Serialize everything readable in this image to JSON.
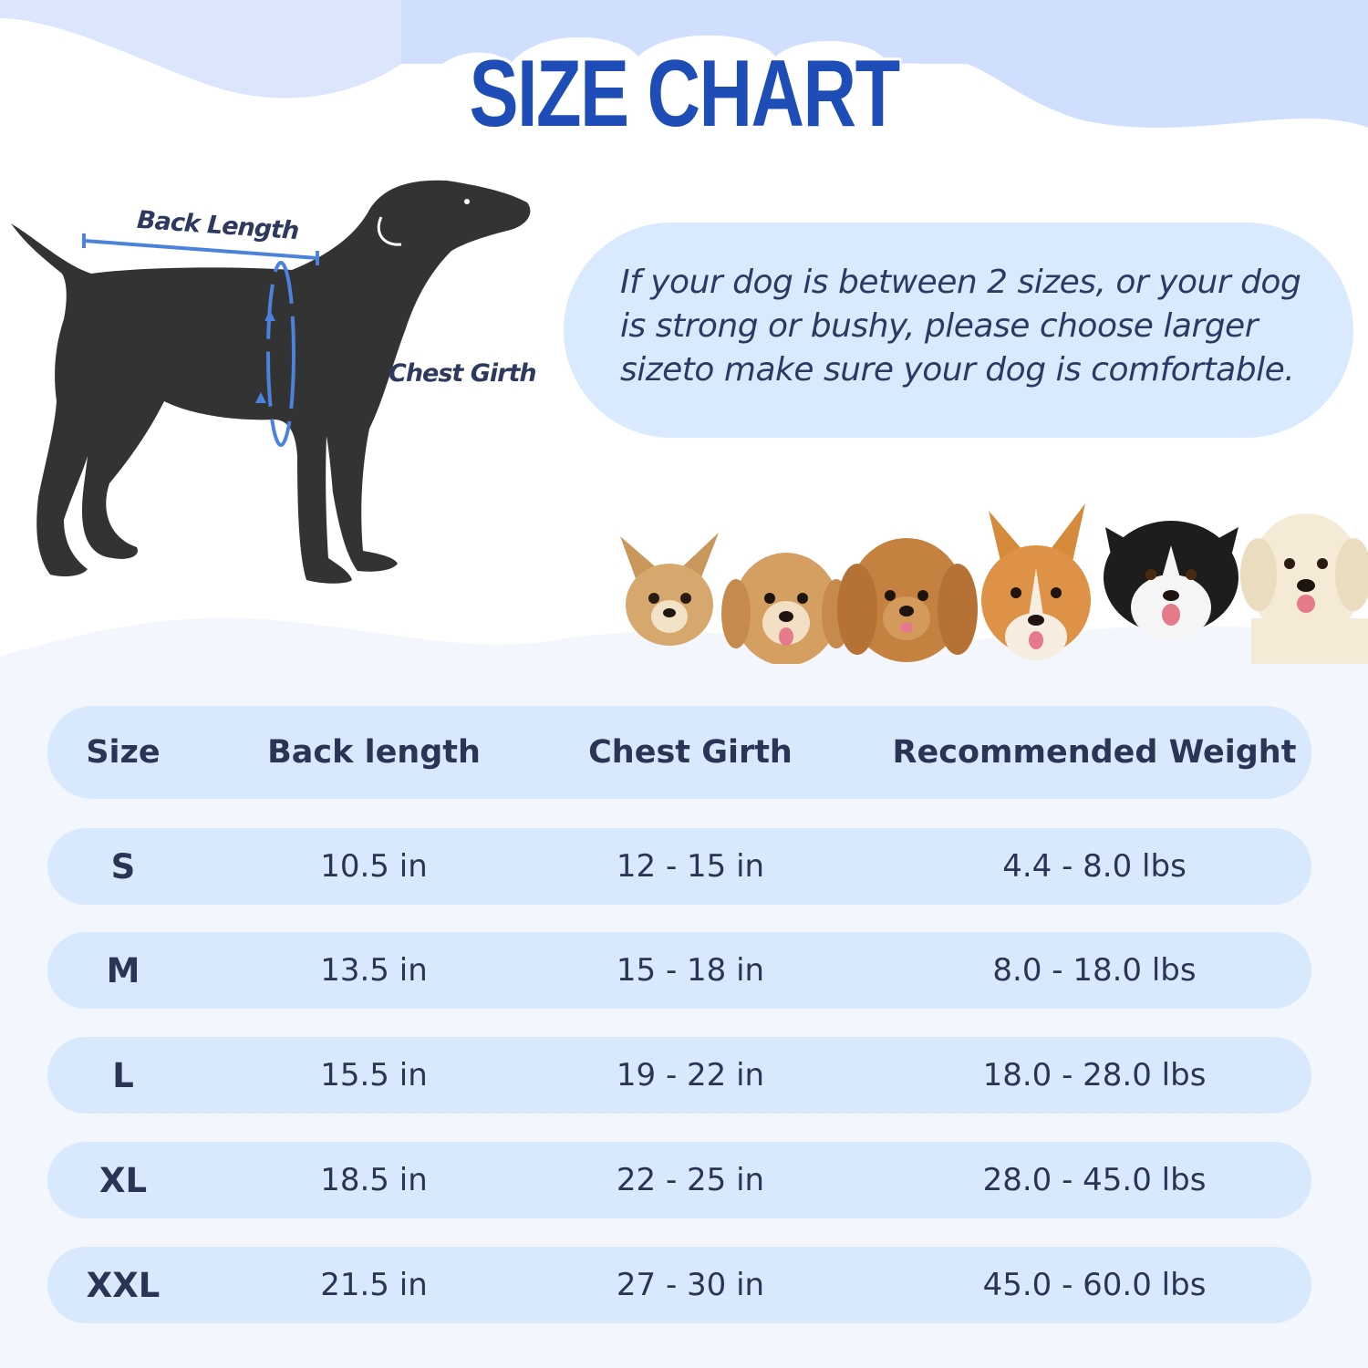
{
  "title": "SIZE CHART",
  "diagram": {
    "back_length_label": "Back Length",
    "chest_girth_label": "Chest Girth"
  },
  "note": "If your dog is between 2 sizes, or your dog is strong or bushy, please choose larger sizeto make sure your dog is comfortable.",
  "table": {
    "headers": [
      "Size",
      "Back length",
      "Chest Girth",
      "Recommended Weight"
    ],
    "rows": [
      [
        "S",
        "10.5 in",
        "12 - 15 in",
        "4.4 - 8.0 lbs"
      ],
      [
        "M",
        "13.5 in",
        "15 - 18 in",
        "8.0 - 18.0 lbs"
      ],
      [
        "L",
        "15.5 in",
        "19 - 22 in",
        "18.0 - 28.0 lbs"
      ],
      [
        "XL",
        "18.5 in",
        "22 - 25 in",
        "28.0 - 45.0 lbs"
      ],
      [
        "XXL",
        "21.5 in",
        "27 - 30 in",
        "45.0 - 60.0 lbs"
      ]
    ]
  },
  "colors": {
    "title": "#1f4db8",
    "row_background": "#d8e9fd",
    "page_wave": "#f3f6fc",
    "top_wave": "#cfdffd",
    "dog_silhouette": "#333333",
    "measure_line": "#4a82dc"
  },
  "photos": [
    "chihuahua",
    "maltipoo",
    "poodle",
    "corgi",
    "border-collie",
    "labrador"
  ]
}
